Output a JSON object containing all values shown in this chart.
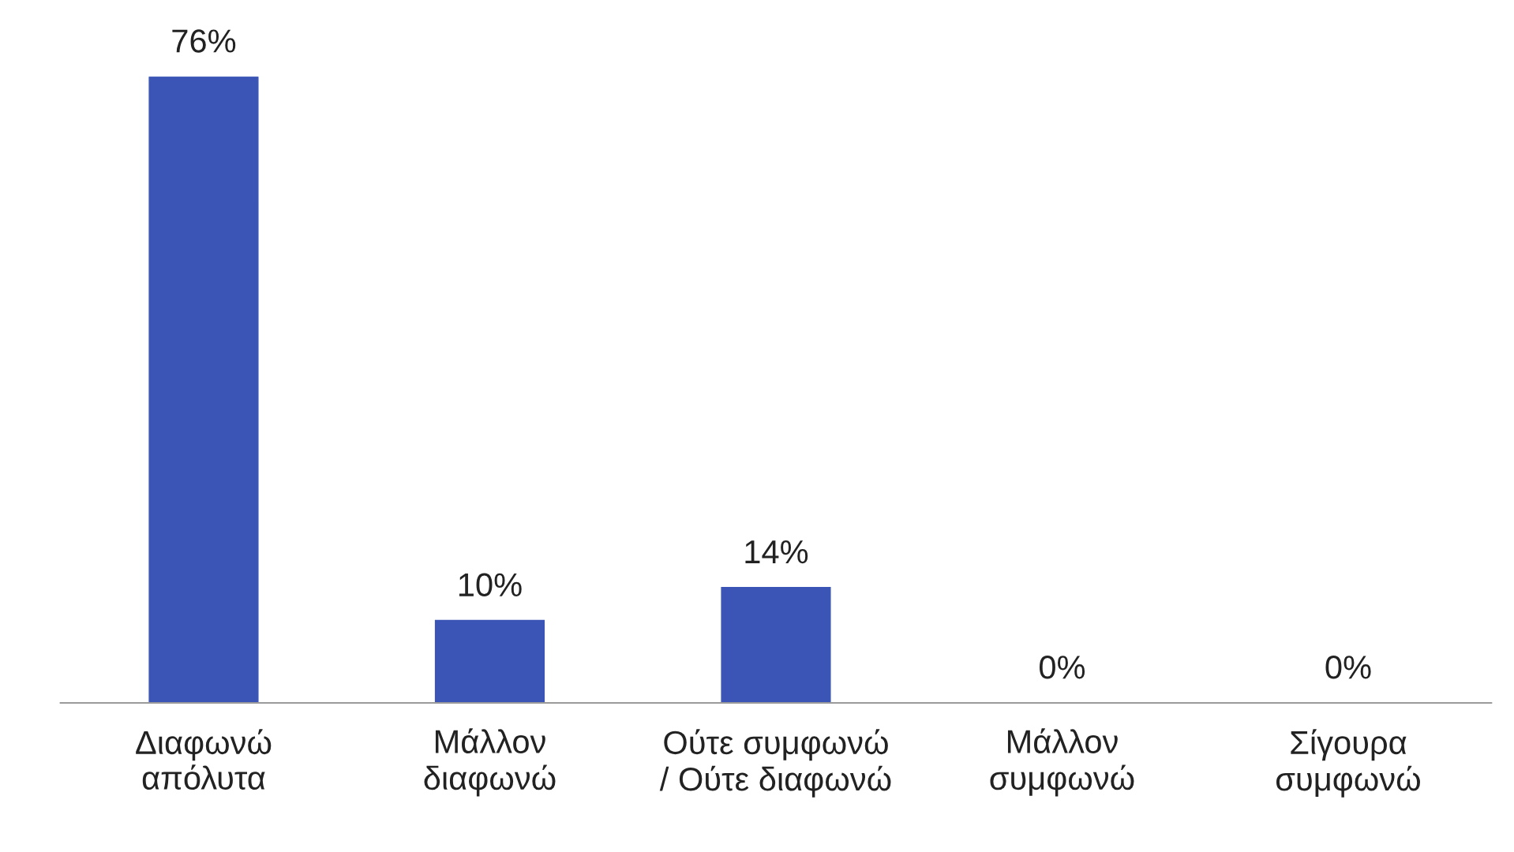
{
  "chart_data": {
    "type": "bar",
    "categories": [
      "Διαφωνώ\nαπόλυτα",
      "Μάλλον\nδιαφωνώ",
      "Ούτε συμφωνώ\n/ Ούτε διαφωνώ",
      "Μάλλον\nσυμφωνώ",
      "Σίγουρα\nσυμφωνώ"
    ],
    "values": [
      76,
      10,
      14,
      0,
      0
    ],
    "value_labels": [
      "76%",
      "10%",
      "14%",
      "0%",
      "0%"
    ],
    "color": "#3a55b5",
    "legend": false
  }
}
